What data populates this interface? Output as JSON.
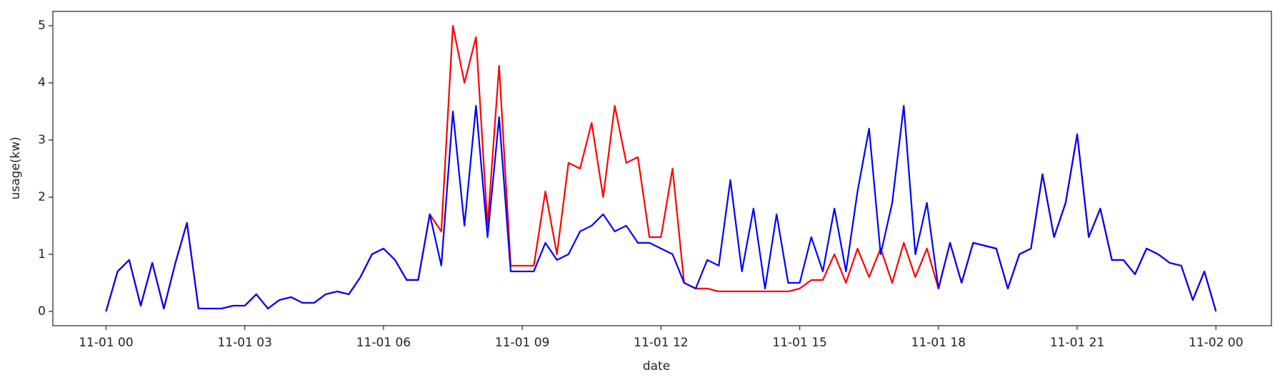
{
  "chart_data": {
    "type": "line",
    "x_label": "date",
    "y_label": "usage(kw)",
    "x": [
      0,
      0.25,
      0.5,
      0.75,
      1,
      1.25,
      1.5,
      1.75,
      2,
      2.25,
      2.5,
      2.75,
      3,
      3.25,
      3.5,
      3.75,
      4,
      4.25,
      4.5,
      4.75,
      5,
      5.25,
      5.5,
      5.75,
      6,
      6.25,
      6.5,
      6.75,
      7,
      7.25,
      7.5,
      7.75,
      8,
      8.25,
      8.5,
      8.75,
      9,
      9.25,
      9.5,
      9.75,
      10,
      10.25,
      10.5,
      10.75,
      11,
      11.25,
      11.5,
      11.75,
      12,
      12.25,
      12.5,
      12.75,
      13,
      13.25,
      13.5,
      13.75,
      14,
      14.25,
      14.5,
      14.75,
      15,
      15.25,
      15.5,
      15.75,
      16,
      16.25,
      16.5,
      16.75,
      17,
      17.25,
      17.5,
      17.75,
      18,
      18.25,
      18.5,
      18.75,
      19,
      19.25,
      19.5,
      19.75,
      20,
      20.25,
      20.5,
      20.75,
      21,
      21.25,
      21.5,
      21.75,
      22,
      22.25,
      22.5,
      22.75,
      23,
      23.25,
      23.5,
      23.75,
      24
    ],
    "series": [
      {
        "color": "#ff0000",
        "values": [
          0,
          0.7,
          0.9,
          0.1,
          0.85,
          0.05,
          0.85,
          1.55,
          0.05,
          0.05,
          0.05,
          0.1,
          0.1,
          0.3,
          0.05,
          0.2,
          0.25,
          0.15,
          0.15,
          0.3,
          0.35,
          0.3,
          0.6,
          1.0,
          1.1,
          0.9,
          0.55,
          0.55,
          1.7,
          1.4,
          5.0,
          4.0,
          4.8,
          1.5,
          4.3,
          0.8,
          0.8,
          0.8,
          2.1,
          1.0,
          2.6,
          2.5,
          3.3,
          2.0,
          3.6,
          2.6,
          2.7,
          1.3,
          1.3,
          2.5,
          0.5,
          0.4,
          0.4,
          0.35,
          0.35,
          0.35,
          0.35,
          0.35,
          0.35,
          0.35,
          0.4,
          0.55,
          0.55,
          1.0,
          0.5,
          1.1,
          0.6,
          1.1,
          0.5,
          1.2,
          0.6,
          1.1,
          0.4,
          1.2,
          0.5,
          1.2,
          1.15,
          1.1,
          0.4,
          1.0,
          1.1,
          2.4,
          1.3,
          1.9,
          3.1,
          1.3,
          1.8,
          0.9,
          0.9,
          0.65,
          1.1,
          1.0,
          0.85,
          0.8,
          0.2,
          0.7,
          0.0
        ]
      },
      {
        "color": "#0000ff",
        "values": [
          0,
          0.7,
          0.9,
          0.1,
          0.85,
          0.05,
          0.85,
          1.55,
          0.05,
          0.05,
          0.05,
          0.1,
          0.1,
          0.3,
          0.05,
          0.2,
          0.25,
          0.15,
          0.15,
          0.3,
          0.35,
          0.3,
          0.6,
          1.0,
          1.1,
          0.9,
          0.55,
          0.55,
          1.7,
          0.8,
          3.5,
          1.5,
          3.6,
          1.3,
          3.4,
          0.7,
          0.7,
          0.7,
          1.2,
          0.9,
          1.0,
          1.4,
          1.5,
          1.7,
          1.4,
          1.5,
          1.2,
          1.2,
          1.1,
          1.0,
          0.5,
          0.4,
          0.9,
          0.8,
          2.3,
          0.7,
          1.8,
          0.4,
          1.7,
          0.5,
          0.5,
          1.3,
          0.7,
          1.8,
          0.7,
          2.1,
          3.2,
          1.0,
          1.9,
          3.6,
          1.0,
          1.9,
          0.4,
          1.2,
          0.5,
          1.2,
          1.15,
          1.1,
          0.4,
          1.0,
          1.1,
          2.4,
          1.3,
          1.9,
          3.1,
          1.3,
          1.8,
          0.9,
          0.9,
          0.65,
          1.1,
          1.0,
          0.85,
          0.8,
          0.2,
          0.7,
          0.0
        ]
      }
    ],
    "xlim": [
      -1.15,
      25.2
    ],
    "xticks": [
      {
        "value": 0,
        "label": "11-01 00"
      },
      {
        "value": 3,
        "label": "11-01 03"
      },
      {
        "value": 6,
        "label": "11-01 06"
      },
      {
        "value": 9,
        "label": "11-01 09"
      },
      {
        "value": 12,
        "label": "11-01 12"
      },
      {
        "value": 15,
        "label": "11-01 15"
      },
      {
        "value": 18,
        "label": "11-01 18"
      },
      {
        "value": 21,
        "label": "11-01 21"
      },
      {
        "value": 24,
        "label": "11-02 00"
      }
    ],
    "ylim": [
      -0.25,
      5.25
    ],
    "yticks": [
      0,
      1,
      2,
      3,
      4,
      5
    ],
    "grid": false
  }
}
